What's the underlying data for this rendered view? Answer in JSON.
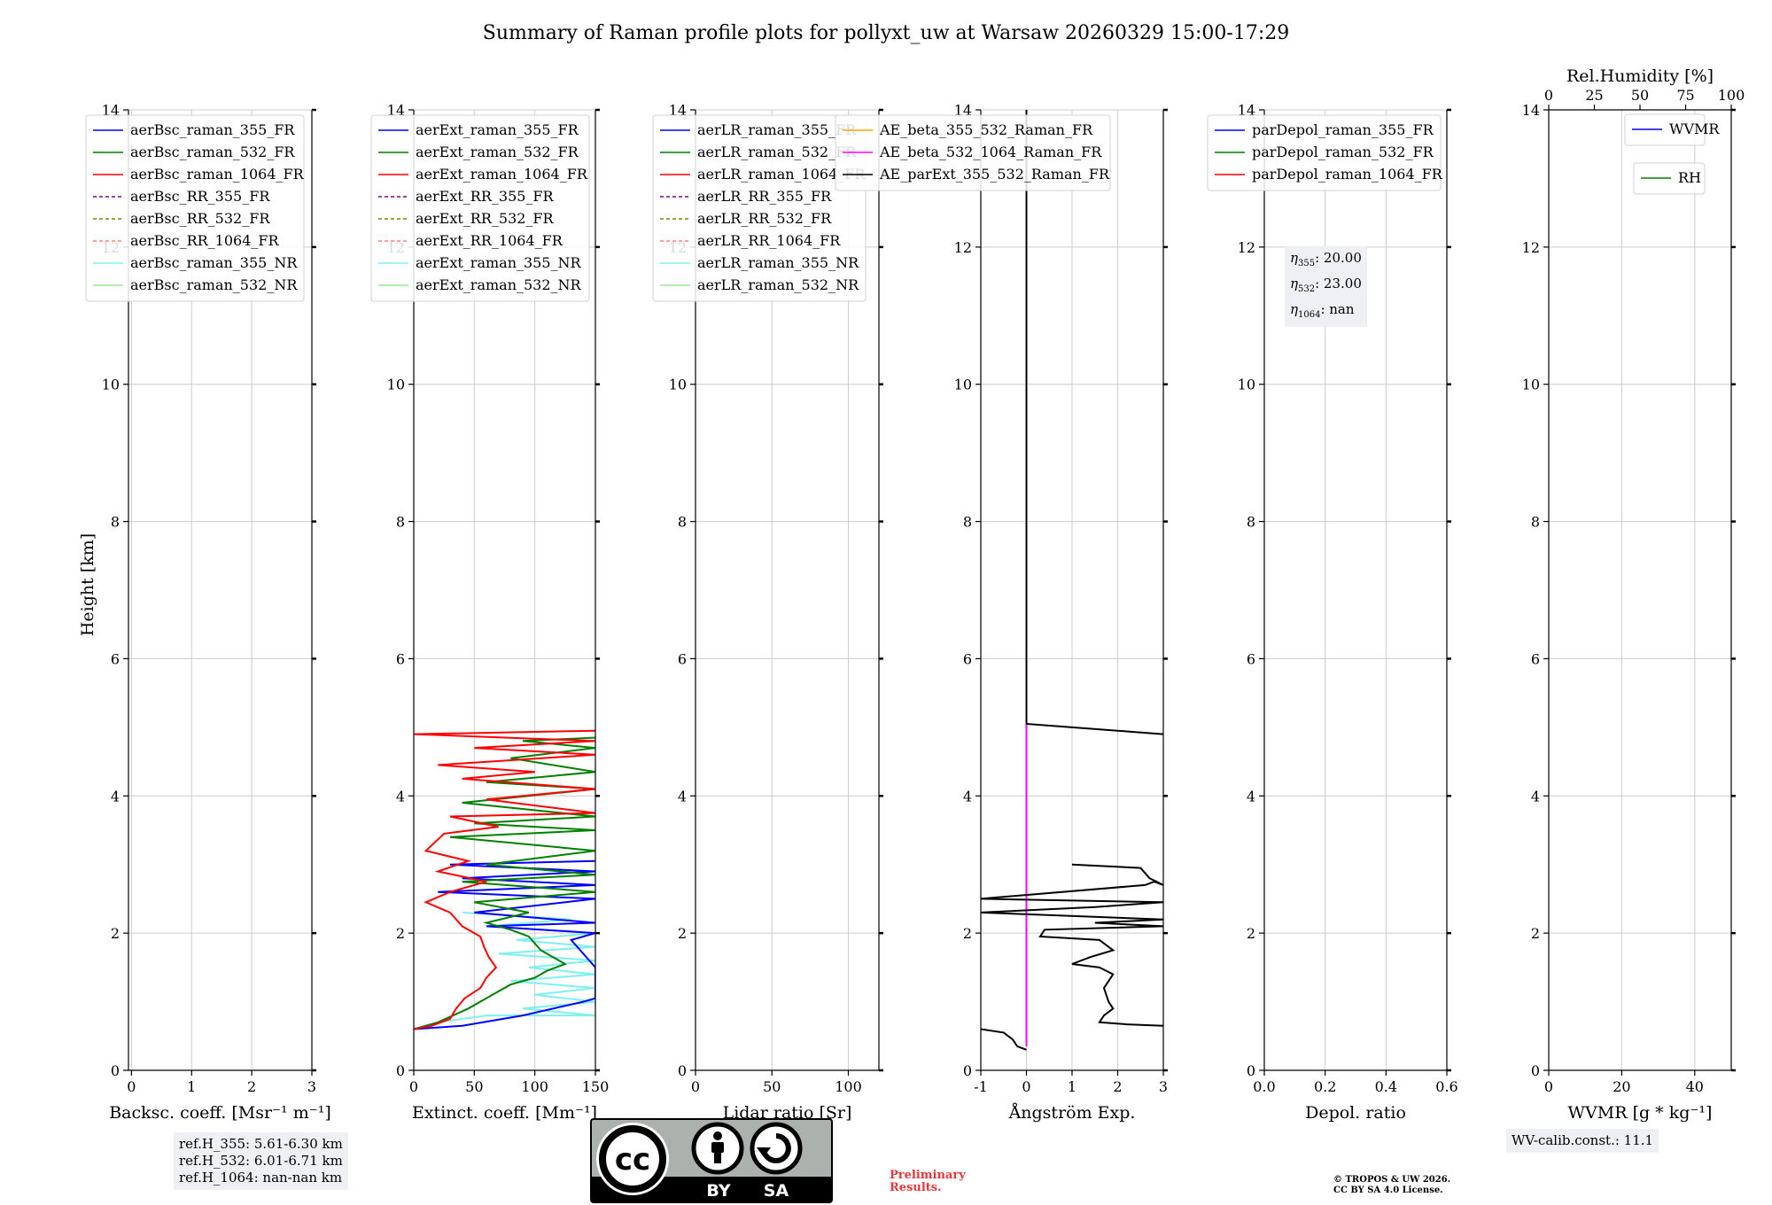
{
  "figure": {
    "title": "Summary of Raman profile plots for pollyxt_uw at Warsaw 20260329 15:00-17:29",
    "ylabel": "Height [km]",
    "ylim": [
      0,
      14
    ],
    "yticks": [
      "0",
      "2",
      "4",
      "6",
      "8",
      "10",
      "12",
      "14"
    ]
  },
  "chart_data": [
    {
      "type": "line",
      "id": "backscatter",
      "xlabel": "Backsc. coeff. [Msr⁻¹ m⁻¹]",
      "xlim": [
        -0.05,
        3.0
      ],
      "xticks": [
        0,
        1,
        2,
        3
      ],
      "legend": [
        "aerBsc_raman_355_FR",
        "aerBsc_raman_532_FR",
        "aerBsc_raman_1064_FR",
        "aerBsc_RR_355_FR",
        "aerBsc_RR_532_FR",
        "aerBsc_RR_1064_FR",
        "aerBsc_raman_355_NR",
        "aerBsc_raman_532_NR"
      ],
      "series": []
    },
    {
      "type": "line",
      "id": "extinction",
      "xlabel": "Extinct. coeff. [Mm⁻¹]",
      "xlim": [
        0,
        150
      ],
      "xticks": [
        0,
        50,
        100,
        150
      ],
      "legend": [
        "aerExt_raman_355_FR",
        "aerExt_raman_532_FR",
        "aerExt_raman_1064_FR",
        "aerExt_RR_355_FR",
        "aerExt_RR_532_FR",
        "aerExt_RR_1064_FR",
        "aerExt_raman_355_NR",
        "aerExt_raman_532_NR"
      ],
      "series": [
        {
          "name": "aerExt_raman_355_NR",
          "points": [
            [
              0,
              0.6
            ],
            [
              20,
              0.7
            ],
            [
              60,
              0.8
            ],
            [
              150,
              0.8
            ],
            [
              90,
              0.9
            ],
            [
              150,
              1.0
            ],
            [
              100,
              1.1
            ],
            [
              150,
              1.2
            ],
            [
              80,
              1.3
            ],
            [
              150,
              1.4
            ],
            [
              95,
              1.5
            ],
            [
              150,
              1.6
            ],
            [
              70,
              1.7
            ],
            [
              150,
              1.8
            ],
            [
              85,
              1.9
            ],
            [
              150,
              2.0
            ],
            [
              60,
              2.1
            ],
            [
              130,
              2.2
            ],
            [
              40,
              2.3
            ]
          ]
        },
        {
          "name": "aerExt_raman_355_FR",
          "points": [
            [
              0,
              0.6
            ],
            [
              40,
              0.65
            ],
            [
              90,
              0.8
            ],
            [
              140,
              1.0
            ],
            [
              150,
              1.05
            ],
            [
              150,
              1.5
            ],
            [
              130,
              1.9
            ],
            [
              150,
              2.0
            ],
            [
              60,
              2.1
            ],
            [
              150,
              2.15
            ],
            [
              50,
              2.3
            ],
            [
              150,
              2.5
            ],
            [
              20,
              2.6
            ],
            [
              150,
              2.7
            ],
            [
              40,
              2.8
            ],
            [
              150,
              2.9
            ],
            [
              30,
              3.0
            ],
            [
              150,
              3.05
            ]
          ]
        },
        {
          "name": "aerExt_raman_532_FR",
          "points": [
            [
              0,
              0.6
            ],
            [
              20,
              0.7
            ],
            [
              45,
              0.9
            ],
            [
              65,
              1.1
            ],
            [
              80,
              1.25
            ],
            [
              100,
              1.35
            ],
            [
              110,
              1.45
            ],
            [
              125,
              1.55
            ],
            [
              115,
              1.65
            ],
            [
              105,
              1.75
            ],
            [
              100,
              1.85
            ],
            [
              95,
              1.95
            ],
            [
              80,
              2.05
            ],
            [
              60,
              2.15
            ],
            [
              95,
              2.3
            ],
            [
              50,
              2.45
            ],
            [
              150,
              2.6
            ],
            [
              40,
              2.75
            ],
            [
              150,
              2.85
            ],
            [
              60,
              3.0
            ],
            [
              150,
              3.2
            ],
            [
              30,
              3.4
            ],
            [
              150,
              3.5
            ],
            [
              50,
              3.6
            ],
            [
              150,
              3.7
            ],
            [
              40,
              3.9
            ],
            [
              150,
              4.1
            ],
            [
              60,
              4.2
            ],
            [
              150,
              4.35
            ],
            [
              80,
              4.55
            ],
            [
              150,
              4.7
            ],
            [
              90,
              4.8
            ],
            [
              150,
              4.85
            ]
          ]
        },
        {
          "name": "aerExt_raman_1064_FR",
          "points": [
            [
              0,
              0.6
            ],
            [
              15,
              0.65
            ],
            [
              30,
              0.75
            ],
            [
              35,
              0.9
            ],
            [
              42,
              1.05
            ],
            [
              55,
              1.2
            ],
            [
              60,
              1.35
            ],
            [
              68,
              1.5
            ],
            [
              62,
              1.65
            ],
            [
              58,
              1.8
            ],
            [
              55,
              1.95
            ],
            [
              40,
              2.1
            ],
            [
              30,
              2.3
            ],
            [
              10,
              2.45
            ],
            [
              30,
              2.6
            ],
            [
              60,
              2.75
            ],
            [
              20,
              2.9
            ],
            [
              45,
              3.05
            ],
            [
              10,
              3.2
            ],
            [
              25,
              3.45
            ],
            [
              70,
              3.55
            ],
            [
              30,
              3.7
            ],
            [
              150,
              3.75
            ],
            [
              60,
              3.95
            ],
            [
              150,
              4.1
            ],
            [
              40,
              4.25
            ],
            [
              100,
              4.35
            ],
            [
              20,
              4.45
            ],
            [
              150,
              4.6
            ],
            [
              50,
              4.7
            ],
            [
              150,
              4.8
            ],
            [
              0,
              4.9
            ],
            [
              150,
              4.95
            ]
          ]
        }
      ]
    },
    {
      "type": "line",
      "id": "lidar_ratio",
      "xlabel": "Lidar ratio [Sr]",
      "xlim": [
        0,
        120
      ],
      "xticks": [
        0,
        50,
        100
      ],
      "legend": [
        "aerLR_raman_355_FR",
        "aerLR_raman_532_FR",
        "aerLR_raman_1064_FR",
        "aerLR_RR_355_FR",
        "aerLR_RR_532_FR",
        "aerLR_RR_1064_FR",
        "aerLR_raman_355_NR",
        "aerLR_raman_532_NR"
      ],
      "series": []
    },
    {
      "type": "line",
      "id": "angstrom",
      "xlabel": "Ångström Exp.",
      "xlim": [
        -1,
        3
      ],
      "xticks": [
        -1,
        0,
        1,
        2,
        3
      ],
      "legend": [
        "AE_beta_355_532_Raman_FR",
        "AE_beta_532_1064_Raman_FR",
        "AE_parExt_355_532_Raman_FR"
      ],
      "series": [
        {
          "name": "AE_beta_532_1064_Raman_FR",
          "points": [
            [
              0,
              0.35
            ],
            [
              0,
              5.05
            ]
          ]
        },
        {
          "name": "AE_parExt_355_532_Raman_FR",
          "points": [
            [
              0,
              14
            ],
            [
              0,
              5.05
            ],
            [
              1,
              5.0
            ],
            [
              2,
              4.95
            ],
            [
              3,
              4.9
            ]
          ]
        },
        {
          "name": "AE_parExt_355_532_Raman_FR (lower)",
          "points": [
            [
              3,
              0.65
            ],
            [
              2.2,
              0.67
            ],
            [
              1.6,
              0.7
            ],
            [
              1.7,
              0.8
            ],
            [
              1.9,
              0.9
            ],
            [
              1.8,
              1.0
            ],
            [
              1.7,
              1.2
            ],
            [
              1.9,
              1.4
            ],
            [
              1.6,
              1.5
            ],
            [
              1.0,
              1.55
            ],
            [
              1.4,
              1.65
            ],
            [
              1.9,
              1.75
            ],
            [
              1.6,
              1.9
            ],
            [
              0.3,
              1.95
            ],
            [
              0.4,
              2.05
            ],
            [
              3,
              2.1
            ],
            [
              1.5,
              2.15
            ],
            [
              3,
              2.2
            ],
            [
              -1,
              2.3
            ],
            [
              1.5,
              2.38
            ],
            [
              3,
              2.45
            ],
            [
              -1,
              2.5
            ],
            [
              2.6,
              2.7
            ],
            [
              2.8,
              2.75
            ],
            [
              3,
              2.7
            ],
            [
              2.7,
              2.8
            ],
            [
              2.5,
              2.95
            ],
            [
              1,
              3.0
            ]
          ]
        },
        {
          "name": "AE_parExt_355_532_Raman_FR (bottom)",
          "points": [
            [
              0,
              0.3
            ],
            [
              -0.2,
              0.35
            ],
            [
              -0.3,
              0.45
            ],
            [
              -0.5,
              0.55
            ],
            [
              -1,
              0.6
            ]
          ]
        }
      ]
    },
    {
      "type": "line",
      "id": "depol",
      "xlabel": "Depol. ratio",
      "xlim": [
        0,
        0.6
      ],
      "xticks": [
        "0.0",
        "0.2",
        "0.4",
        "0.6"
      ],
      "legend": [
        "parDepol_raman_355_FR",
        "parDepol_raman_532_FR",
        "parDepol_raman_1064_FR"
      ],
      "series": []
    },
    {
      "type": "line",
      "id": "wvmr",
      "xlabel": "WVMR [g * kg⁻¹]",
      "xlim": [
        0,
        50
      ],
      "xticks": [
        0,
        20,
        40
      ],
      "top_xlabel": "Rel.Humidity [%]",
      "top_xlim": [
        0,
        100
      ],
      "top_xticks": [
        0,
        25,
        50,
        75,
        100
      ],
      "legend": [
        "WVMR"
      ],
      "legend_rh": [
        "RH"
      ],
      "series": []
    }
  ],
  "annotations": {
    "ref_h": [
      "ref.H_355: 5.61-6.30 km",
      "ref.H_532: 6.01-6.71 km",
      "ref.H_1064: nan-nan km"
    ],
    "eta": [
      {
        "label": "η",
        "sub": "355",
        "value": ": 20.00"
      },
      {
        "label": "η",
        "sub": "532",
        "value": ": 23.00"
      },
      {
        "label": "η",
        "sub": "1064",
        "value": ": nan"
      }
    ],
    "wv_calib": "WV-calib.const.: 11.1",
    "license_badge": {
      "left": "BY",
      "right": "SA"
    },
    "preliminary": [
      "Preliminary",
      "Results."
    ],
    "copyright": [
      "© TROPOS & UW 2026.",
      "CC BY SA 4.0 License."
    ]
  },
  "colors": {
    "c355": "#0000ff",
    "c532": "#008000",
    "c1064": "#ff0000",
    "rr355": "#800080",
    "rr532": "#808000",
    "rr1064": "#fa8072",
    "nr355": "#7ff0f0",
    "nr532": "#90ee90",
    "ae1": "#ffa500",
    "ae2": "#ff00ff",
    "ae3": "#000000",
    "grid": "#cccccc"
  }
}
